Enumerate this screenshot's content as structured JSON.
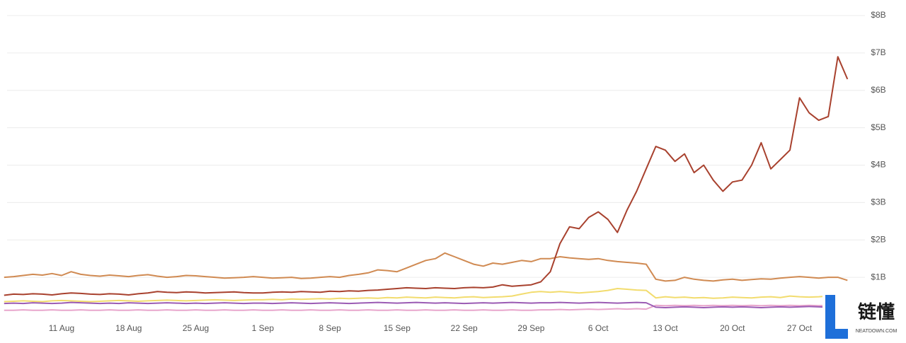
{
  "chart_data": {
    "type": "line",
    "x": [
      "5 Aug",
      "6 Aug",
      "7 Aug",
      "8 Aug",
      "9 Aug",
      "10 Aug",
      "11 Aug",
      "12 Aug",
      "13 Aug",
      "14 Aug",
      "15 Aug",
      "16 Aug",
      "17 Aug",
      "18 Aug",
      "19 Aug",
      "20 Aug",
      "21 Aug",
      "22 Aug",
      "23 Aug",
      "24 Aug",
      "25 Aug",
      "26 Aug",
      "27 Aug",
      "28 Aug",
      "29 Aug",
      "30 Aug",
      "31 Aug",
      "1 Sep",
      "2 Sep",
      "3 Sep",
      "4 Sep",
      "5 Sep",
      "6 Sep",
      "7 Sep",
      "8 Sep",
      "9 Sep",
      "10 Sep",
      "11 Sep",
      "12 Sep",
      "13 Sep",
      "14 Sep",
      "15 Sep",
      "16 Sep",
      "17 Sep",
      "18 Sep",
      "19 Sep",
      "20 Sep",
      "21 Sep",
      "22 Sep",
      "23 Sep",
      "24 Sep",
      "25 Sep",
      "26 Sep",
      "27 Sep",
      "28 Sep",
      "29 Sep",
      "30 Sep",
      "1 Oct",
      "2 Oct",
      "3 Oct",
      "4 Oct",
      "5 Oct",
      "6 Oct",
      "7 Oct",
      "8 Oct",
      "9 Oct",
      "10 Oct",
      "11 Oct",
      "12 Oct",
      "13 Oct",
      "14 Oct",
      "15 Oct",
      "16 Oct",
      "17 Oct",
      "18 Oct",
      "19 Oct",
      "20 Oct",
      "21 Oct",
      "22 Oct",
      "23 Oct",
      "24 Oct",
      "25 Oct",
      "26 Oct",
      "27 Oct",
      "28 Oct",
      "29 Oct",
      "30 Oct",
      "31 Oct",
      "1 Nov"
    ],
    "series": [
      {
        "color": "#d08a52",
        "values": [
          1000000000.0,
          1020000000.0,
          1050000000.0,
          1080000000.0,
          1060000000.0,
          1100000000.0,
          1050000000.0,
          1150000000.0,
          1080000000.0,
          1050000000.0,
          1030000000.0,
          1060000000.0,
          1040000000.0,
          1020000000.0,
          1050000000.0,
          1070000000.0,
          1030000000.0,
          1000000000.0,
          1020000000.0,
          1050000000.0,
          1040000000.0,
          1020000000.0,
          1000000000.0,
          980000000.0,
          990000000.0,
          1000000000.0,
          1020000000.0,
          1000000000.0,
          980000000.0,
          990000000.0,
          1000000000.0,
          970000000.0,
          980000000.0,
          1000000000.0,
          1020000000.0,
          1000000000.0,
          1050000000.0,
          1080000000.0,
          1120000000.0,
          1200000000.0,
          1180000000.0,
          1150000000.0,
          1250000000.0,
          1350000000.0,
          1450000000.0,
          1500000000.0,
          1650000000.0,
          1550000000.0,
          1450000000.0,
          1350000000.0,
          1300000000.0,
          1380000000.0,
          1350000000.0,
          1400000000.0,
          1450000000.0,
          1420000000.0,
          1500000000.0,
          1500000000.0,
          1550000000.0,
          1520000000.0,
          1500000000.0,
          1480000000.0,
          1500000000.0,
          1450000000.0,
          1420000000.0,
          1400000000.0,
          1380000000.0,
          1350000000.0,
          950000000.0,
          900000000.0,
          920000000.0,
          1000000000.0,
          950000000.0,
          920000000.0,
          900000000.0,
          930000000.0,
          950000000.0,
          920000000.0,
          940000000.0,
          960000000.0,
          950000000.0,
          980000000.0,
          1000000000.0,
          1020000000.0,
          1000000000.0,
          980000000.0,
          1000000000.0,
          1000000000.0,
          920000000.0
        ]
      },
      {
        "color": "#f2dc6e",
        "values": [
          350000000.0,
          360000000.0,
          370000000.0,
          360000000.0,
          350000000.0,
          370000000.0,
          380000000.0,
          370000000.0,
          360000000.0,
          350000000.0,
          360000000.0,
          370000000.0,
          380000000.0,
          370000000.0,
          360000000.0,
          370000000.0,
          380000000.0,
          390000000.0,
          380000000.0,
          370000000.0,
          380000000.0,
          390000000.0,
          400000000.0,
          390000000.0,
          380000000.0,
          390000000.0,
          400000000.0,
          400000000.0,
          410000000.0,
          400000000.0,
          420000000.0,
          410000000.0,
          420000000.0,
          430000000.0,
          420000000.0,
          440000000.0,
          430000000.0,
          440000000.0,
          450000000.0,
          440000000.0,
          460000000.0,
          450000000.0,
          470000000.0,
          460000000.0,
          450000000.0,
          470000000.0,
          460000000.0,
          450000000.0,
          470000000.0,
          480000000.0,
          460000000.0,
          470000000.0,
          480000000.0,
          500000000.0,
          550000000.0,
          600000000.0,
          620000000.0,
          600000000.0,
          620000000.0,
          600000000.0,
          580000000.0,
          600000000.0,
          620000000.0,
          650000000.0,
          700000000.0,
          680000000.0,
          660000000.0,
          650000000.0,
          450000000.0,
          480000000.0,
          460000000.0,
          470000000.0,
          450000000.0,
          460000000.0,
          440000000.0,
          450000000.0,
          470000000.0,
          460000000.0,
          450000000.0,
          470000000.0,
          480000000.0,
          460000000.0,
          500000000.0,
          480000000.0,
          470000000.0,
          480000000.0,
          500000000.0,
          490000000.0,
          480000000.0
        ]
      },
      {
        "color": "#e8a6cc",
        "values": [
          120000000.0,
          120000000.0,
          130000000.0,
          120000000.0,
          120000000.0,
          130000000.0,
          120000000.0,
          120000000.0,
          130000000.0,
          120000000.0,
          120000000.0,
          130000000.0,
          120000000.0,
          120000000.0,
          130000000.0,
          120000000.0,
          120000000.0,
          130000000.0,
          120000000.0,
          120000000.0,
          130000000.0,
          120000000.0,
          120000000.0,
          130000000.0,
          120000000.0,
          120000000.0,
          130000000.0,
          120000000.0,
          120000000.0,
          130000000.0,
          120000000.0,
          120000000.0,
          130000000.0,
          120000000.0,
          120000000.0,
          130000000.0,
          120000000.0,
          120000000.0,
          130000000.0,
          120000000.0,
          120000000.0,
          130000000.0,
          120000000.0,
          120000000.0,
          130000000.0,
          120000000.0,
          120000000.0,
          130000000.0,
          120000000.0,
          120000000.0,
          130000000.0,
          120000000.0,
          120000000.0,
          130000000.0,
          120000000.0,
          120000000.0,
          130000000.0,
          130000000.0,
          140000000.0,
          130000000.0,
          140000000.0,
          150000000.0,
          140000000.0,
          150000000.0,
          160000000.0,
          150000000.0,
          160000000.0,
          150000000.0,
          250000000.0,
          240000000.0,
          250000000.0,
          240000000.0,
          250000000.0,
          240000000.0,
          250000000.0,
          240000000.0,
          250000000.0,
          240000000.0,
          250000000.0,
          240000000.0,
          250000000.0,
          240000000.0,
          250000000.0,
          240000000.0,
          250000000.0,
          240000000.0,
          250000000.0,
          240000000.0,
          250000000.0
        ]
      },
      {
        "color": "#9b5cb4",
        "values": [
          300000000.0,
          310000000.0,
          300000000.0,
          320000000.0,
          310000000.0,
          300000000.0,
          310000000.0,
          330000000.0,
          320000000.0,
          310000000.0,
          300000000.0,
          310000000.0,
          300000000.0,
          320000000.0,
          310000000.0,
          300000000.0,
          310000000.0,
          320000000.0,
          310000000.0,
          300000000.0,
          310000000.0,
          300000000.0,
          310000000.0,
          320000000.0,
          310000000.0,
          300000000.0,
          310000000.0,
          310000000.0,
          300000000.0,
          310000000.0,
          320000000.0,
          310000000.0,
          300000000.0,
          310000000.0,
          320000000.0,
          310000000.0,
          300000000.0,
          310000000.0,
          320000000.0,
          330000000.0,
          320000000.0,
          310000000.0,
          320000000.0,
          330000000.0,
          320000000.0,
          310000000.0,
          320000000.0,
          310000000.0,
          300000000.0,
          310000000.0,
          320000000.0,
          310000000.0,
          320000000.0,
          330000000.0,
          320000000.0,
          310000000.0,
          320000000.0,
          320000000.0,
          330000000.0,
          320000000.0,
          310000000.0,
          320000000.0,
          330000000.0,
          320000000.0,
          310000000.0,
          320000000.0,
          330000000.0,
          320000000.0,
          200000000.0,
          190000000.0,
          200000000.0,
          210000000.0,
          200000000.0,
          190000000.0,
          200000000.0,
          210000000.0,
          200000000.0,
          210000000.0,
          200000000.0,
          190000000.0,
          200000000.0,
          210000000.0,
          200000000.0,
          210000000.0,
          220000000.0,
          210000000.0,
          200000000.0,
          210000000.0,
          200000000.0
        ]
      },
      {
        "color": "#a8412e",
        "values": [
          520000000.0,
          550000000.0,
          540000000.0,
          560000000.0,
          550000000.0,
          530000000.0,
          560000000.0,
          580000000.0,
          570000000.0,
          550000000.0,
          540000000.0,
          560000000.0,
          550000000.0,
          530000000.0,
          560000000.0,
          580000000.0,
          620000000.0,
          600000000.0,
          590000000.0,
          610000000.0,
          600000000.0,
          580000000.0,
          590000000.0,
          600000000.0,
          610000000.0,
          590000000.0,
          580000000.0,
          580000000.0,
          600000000.0,
          610000000.0,
          600000000.0,
          620000000.0,
          610000000.0,
          600000000.0,
          630000000.0,
          620000000.0,
          640000000.0,
          630000000.0,
          650000000.0,
          660000000.0,
          680000000.0,
          700000000.0,
          720000000.0,
          710000000.0,
          700000000.0,
          720000000.0,
          710000000.0,
          700000000.0,
          720000000.0,
          730000000.0,
          720000000.0,
          740000000.0,
          800000000.0,
          760000000.0,
          780000000.0,
          800000000.0,
          880000000.0,
          1150000000.0,
          1900000000.0,
          2350000000.0,
          2300000000.0,
          2600000000.0,
          2750000000.0,
          2550000000.0,
          2200000000.0,
          2800000000.0,
          3300000000.0,
          3900000000.0,
          4500000000.0,
          4400000000.0,
          4100000000.0,
          4300000000.0,
          3800000000.0,
          4000000000.0,
          3600000000.0,
          3300000000.0,
          3550000000.0,
          3600000000.0,
          4000000000.0,
          4600000000.0,
          3900000000.0,
          4150000000.0,
          4400000000.0,
          5800000000.0,
          5400000000.0,
          5200000000.0,
          5300000000.0,
          6900000000.0,
          6300000000.0
        ]
      }
    ],
    "xticks": [
      "11 Aug",
      "18 Aug",
      "25 Aug",
      "1 Sep",
      "8 Sep",
      "15 Sep",
      "22 Sep",
      "29 Sep",
      "6 Oct",
      "13 Oct",
      "20 Oct",
      "27 Oct"
    ],
    "ylim": [
      0,
      8000000000
    ],
    "yticks": [
      {
        "value": 1000000000,
        "label": "$1B"
      },
      {
        "value": 2000000000,
        "label": "$2B"
      },
      {
        "value": 3000000000,
        "label": "$3B"
      },
      {
        "value": 4000000000,
        "label": "$4B"
      },
      {
        "value": 5000000000,
        "label": "$5B"
      },
      {
        "value": 6000000000,
        "label": "$6B"
      },
      {
        "value": 7000000000,
        "label": "$7B"
      },
      {
        "value": 8000000000,
        "label": "$8B"
      }
    ],
    "grid": true
  },
  "logo": {
    "text": "链懂",
    "subtext": "NEATDOWN.COM"
  }
}
